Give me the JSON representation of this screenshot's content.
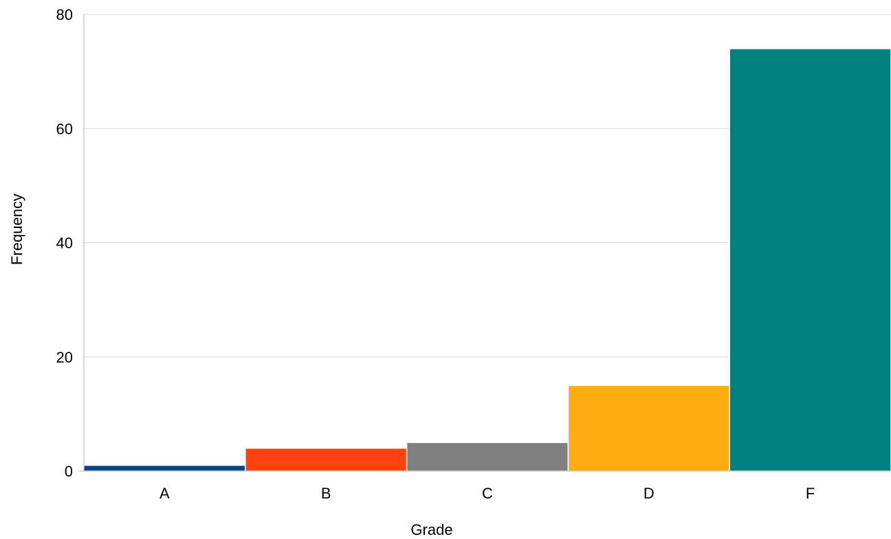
{
  "chart_data": {
    "type": "bar",
    "title": "",
    "xlabel": "Grade",
    "ylabel": "Frequency",
    "categories": [
      "A",
      "B",
      "C",
      "D",
      "F"
    ],
    "values": [
      1,
      4,
      5,
      15,
      74
    ],
    "colors": [
      "#004586",
      "#ff420e",
      "#808080",
      "#ffac12",
      "#00807f"
    ],
    "ylim": [
      0,
      80
    ],
    "yticks": [
      0,
      20,
      40,
      60,
      80
    ],
    "grid": true,
    "legend": "none"
  }
}
